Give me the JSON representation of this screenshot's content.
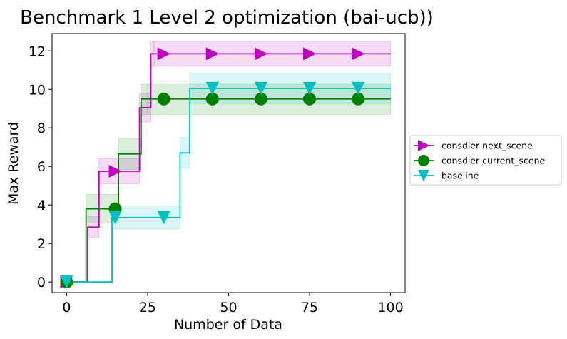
{
  "chart_data": {
    "type": "line",
    "title": "Benchmark 1 Level 2 optimization (bai-ucb))",
    "xlabel": "Number of Data",
    "ylabel": "Max Reward",
    "xlim": [
      -4.5,
      104.5
    ],
    "ylim": [
      -0.55,
      12.9
    ],
    "xticks": [
      0,
      25,
      50,
      75,
      100
    ],
    "yticks": [
      0,
      2,
      4,
      6,
      8,
      10,
      12
    ],
    "xtick_labels": [
      "0",
      "25",
      "50",
      "75",
      "100"
    ],
    "ytick_labels": [
      "0",
      "2",
      "4",
      "6",
      "8",
      "10",
      "12"
    ],
    "grid": false,
    "legend_position": "outside-right",
    "series": [
      {
        "name": "consdier next_scene",
        "color": "#bf00bf",
        "marker": "triangle-right",
        "step_x": [
          0,
          6.5,
          10,
          16,
          22.5,
          26,
          27,
          100
        ],
        "step_y": [
          0,
          2.85,
          5.75,
          5.75,
          9.05,
          11.85,
          11.85,
          11.85
        ],
        "band_lower": [
          0,
          2.3,
          5.1,
          5.1,
          8.3,
          11.2,
          11.2,
          11.2
        ],
        "band_upper": [
          0,
          3.4,
          6.4,
          6.4,
          9.8,
          12.5,
          12.5,
          12.5
        ],
        "marker_x": [
          0,
          15,
          30,
          45,
          60,
          75,
          90
        ],
        "marker_y": [
          0,
          5.75,
          11.85,
          11.85,
          11.85,
          11.85,
          11.85
        ]
      },
      {
        "name": "consdier current_scene",
        "color": "#008000",
        "marker": "circle",
        "step_x": [
          0,
          6,
          16,
          23,
          25,
          100
        ],
        "step_y": [
          0,
          3.8,
          6.65,
          9.5,
          9.5,
          9.5
        ],
        "band_lower": [
          0,
          3.05,
          5.85,
          8.7,
          8.7,
          8.7
        ],
        "band_upper": [
          0,
          4.55,
          7.45,
          10.3,
          10.3,
          10.3
        ],
        "marker_x": [
          0,
          15,
          30,
          45,
          60,
          75,
          90
        ],
        "marker_y": [
          0,
          3.8,
          9.5,
          9.5,
          9.5,
          9.5,
          9.5
        ],
        "note_steps": "step_y[i] holds from step_x[i] to step_x[i+1]"
      },
      {
        "name": "baseline",
        "color": "#00bfbf",
        "marker": "triangle-down",
        "step_x": [
          0,
          14,
          35,
          38,
          100
        ],
        "step_y": [
          0,
          3.35,
          6.7,
          10.05,
          10.05
        ],
        "band_lower": [
          0,
          2.75,
          5.9,
          9.25,
          9.25
        ],
        "band_upper": [
          0,
          3.95,
          7.5,
          10.85,
          10.85
        ],
        "marker_x": [
          0,
          15,
          30,
          45,
          60,
          75,
          90
        ],
        "marker_y": [
          0,
          3.35,
          3.35,
          10.05,
          10.05,
          10.05,
          10.05
        ]
      }
    ]
  }
}
